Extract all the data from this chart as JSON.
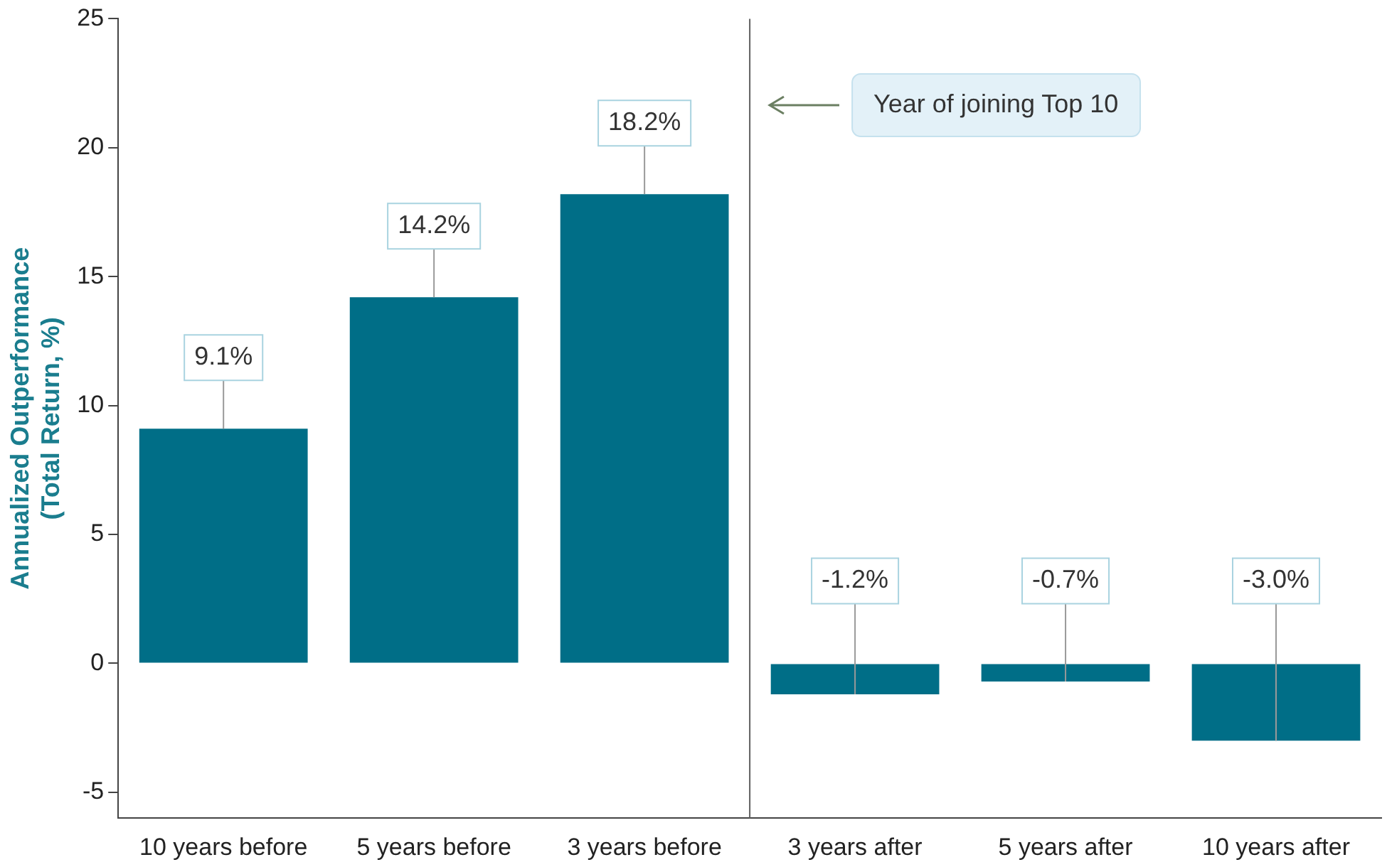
{
  "chart_data": {
    "type": "bar",
    "ylabel": "Annualized Outperformance\n(Total Return, %)",
    "categories": [
      "10 years before",
      "5 years before",
      "3 years before",
      "3 years after",
      "5 years after",
      "10 years after"
    ],
    "values": [
      9.1,
      14.2,
      18.2,
      -1.2,
      -0.7,
      -3.0
    ],
    "value_labels": [
      "9.1%",
      "14.2%",
      "18.2%",
      "-1.2%",
      "-0.7%",
      "-3.0%"
    ],
    "color": "#006e87",
    "ylim": [
      -6,
      25
    ],
    "yticks": [
      -5,
      0,
      5,
      10,
      15,
      20,
      25
    ],
    "grid": false,
    "legend": false,
    "annotations": [
      "Year of joining Top 10"
    ]
  }
}
